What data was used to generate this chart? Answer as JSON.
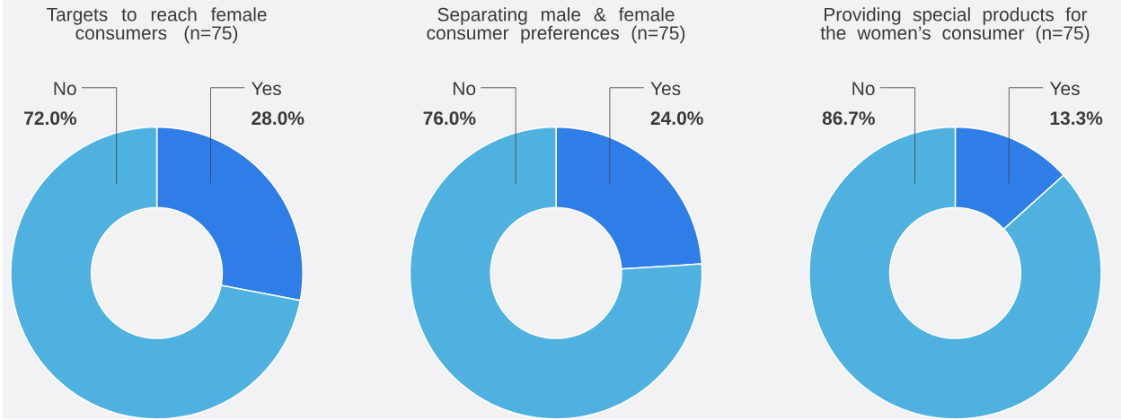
{
  "chart_data": [
    {
      "type": "donut",
      "title": "Targets to reach female consumers (n=75)",
      "categories": [
        "Yes",
        "No"
      ],
      "values": [
        28.0,
        72.0
      ],
      "value_labels": [
        "28.0%",
        "72.0%"
      ],
      "colors": [
        "#2f7ee8",
        "#4fb1e0"
      ]
    },
    {
      "type": "donut",
      "title": "Separating male & female consumer preferences (n=75)",
      "categories": [
        "Yes",
        "No"
      ],
      "values": [
        24.0,
        76.0
      ],
      "value_labels": [
        "24.0%",
        "76.0%"
      ],
      "colors": [
        "#2f7ee8",
        "#4fb1e0"
      ]
    },
    {
      "type": "donut",
      "title": "Providing special products for the women’s consumer (n=75)",
      "categories": [
        "Yes",
        "No"
      ],
      "values": [
        13.3,
        86.7
      ],
      "value_labels": [
        "13.3%",
        "86.7%"
      ],
      "colors": [
        "#2f7ee8",
        "#4fb1e0"
      ]
    }
  ]
}
